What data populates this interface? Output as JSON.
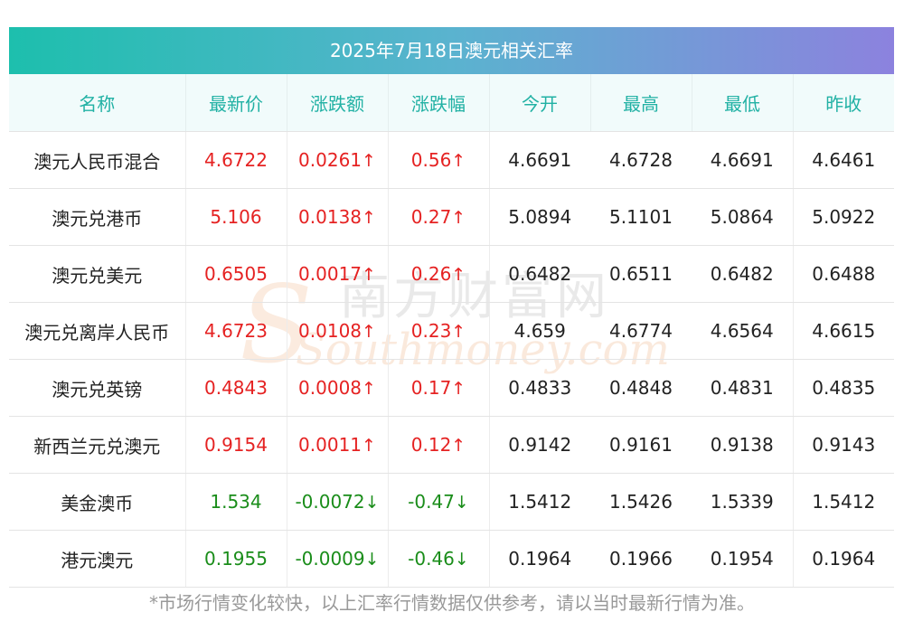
{
  "title": "2025年7月18日澳元相关汇率",
  "headers": [
    "名称",
    "最新价",
    "涨跌额",
    "涨跌幅",
    "今开",
    "最高",
    "最低",
    "昨收"
  ],
  "rows": [
    {
      "name": "澳元人民币混合",
      "latest": "4.6722",
      "change": "0.0261",
      "pct": "0.56",
      "open": "4.6691",
      "high": "4.6728",
      "low": "4.6691",
      "prev": "4.6461",
      "dir": "up",
      "arrow": "↑"
    },
    {
      "name": "澳元兑港币",
      "latest": "5.106",
      "change": "0.0138",
      "pct": "0.27",
      "open": "5.0894",
      "high": "5.1101",
      "low": "5.0864",
      "prev": "5.0922",
      "dir": "up",
      "arrow": "↑"
    },
    {
      "name": "澳元兑美元",
      "latest": "0.6505",
      "change": "0.0017",
      "pct": "0.26",
      "open": "0.6482",
      "high": "0.6511",
      "low": "0.6482",
      "prev": "0.6488",
      "dir": "up",
      "arrow": "↑"
    },
    {
      "name": "澳元兑离岸人民币",
      "latest": "4.6723",
      "change": "0.0108",
      "pct": "0.23",
      "open": "4.659",
      "high": "4.6774",
      "low": "4.6564",
      "prev": "4.6615",
      "dir": "up",
      "arrow": "↑"
    },
    {
      "name": "澳元兑英镑",
      "latest": "0.4843",
      "change": "0.0008",
      "pct": "0.17",
      "open": "0.4833",
      "high": "0.4848",
      "low": "0.4831",
      "prev": "0.4835",
      "dir": "up",
      "arrow": "↑"
    },
    {
      "name": "新西兰元兑澳元",
      "latest": "0.9154",
      "change": "0.0011",
      "pct": "0.12",
      "open": "0.9142",
      "high": "0.9161",
      "low": "0.9138",
      "prev": "0.9143",
      "dir": "up",
      "arrow": "↑"
    },
    {
      "name": "美金澳币",
      "latest": "1.534",
      "change": "-0.0072",
      "pct": "-0.47",
      "open": "1.5412",
      "high": "1.5426",
      "low": "1.5339",
      "prev": "1.5412",
      "dir": "down",
      "arrow": "↓"
    },
    {
      "name": "港元澳元",
      "latest": "0.1955",
      "change": "-0.0009",
      "pct": "-0.46",
      "open": "0.1964",
      "high": "0.1966",
      "low": "0.1954",
      "prev": "0.1964",
      "dir": "down",
      "arrow": "↓"
    }
  ],
  "footnote": "*市场行情变化较快，以上汇率行情数据仅供参考，请以当时最新行情为准。",
  "watermark": {
    "cn": "南方财富网",
    "en": "Southmoney.com"
  },
  "colors": {
    "up": "#e52222",
    "down": "#1a8d1a",
    "header_text": "#21b1a4",
    "header_bg": "#f1fbfb",
    "title_gradient_start": "#1dbfad",
    "title_gradient_end": "#8c82de"
  }
}
